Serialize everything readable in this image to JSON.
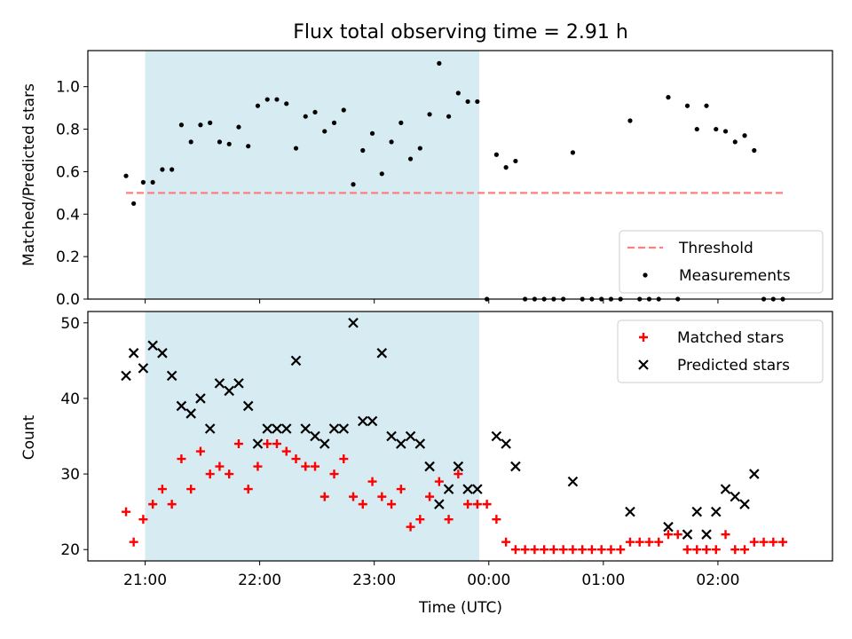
{
  "chart_data": [
    {
      "type": "scatter",
      "title": "Flux total observing time = 2.91 h",
      "xlabel": "",
      "ylabel": "Matched/Predicted stars",
      "ylim": [
        0,
        1.17
      ],
      "yticks": [
        0.0,
        0.2,
        0.4,
        0.6,
        0.8,
        1.0
      ],
      "ytick_labels": [
        "0.0",
        "0.2",
        "0.4",
        "0.6",
        "0.8",
        "1.0"
      ],
      "grid": false,
      "legend_position": "lower-right",
      "threshold": {
        "name": "Threshold",
        "value": 0.5,
        "x": [
          "20:50",
          "02:35"
        ],
        "color": "#ff7f7f"
      },
      "shaded_range": {
        "x": [
          "21:00",
          "23:55"
        ],
        "color": "#add8e6"
      },
      "series": [
        {
          "name": "Measurements",
          "color": "#000000",
          "points": [
            [
              "20:50",
              0.58
            ],
            [
              "20:54",
              0.45
            ],
            [
              "20:59",
              0.55
            ],
            [
              "21:04",
              0.55
            ],
            [
              "21:09",
              0.61
            ],
            [
              "21:14",
              0.61
            ],
            [
              "21:19",
              0.82
            ],
            [
              "21:24",
              0.74
            ],
            [
              "21:29",
              0.82
            ],
            [
              "21:34",
              0.83
            ],
            [
              "21:39",
              0.74
            ],
            [
              "21:44",
              0.73
            ],
            [
              "21:49",
              0.81
            ],
            [
              "21:54",
              0.72
            ],
            [
              "21:59",
              0.91
            ],
            [
              "22:04",
              0.94
            ],
            [
              "22:09",
              0.94
            ],
            [
              "22:14",
              0.92
            ],
            [
              "22:19",
              0.71
            ],
            [
              "22:24",
              0.86
            ],
            [
              "22:29",
              0.88
            ],
            [
              "22:34",
              0.79
            ],
            [
              "22:39",
              0.83
            ],
            [
              "22:44",
              0.89
            ],
            [
              "22:49",
              0.54
            ],
            [
              "22:54",
              0.7
            ],
            [
              "22:59",
              0.78
            ],
            [
              "23:04",
              0.59
            ],
            [
              "23:09",
              0.74
            ],
            [
              "23:14",
              0.83
            ],
            [
              "23:19",
              0.66
            ],
            [
              "23:24",
              0.71
            ],
            [
              "23:29",
              0.87
            ],
            [
              "23:34",
              1.11
            ],
            [
              "23:39",
              0.86
            ],
            [
              "23:44",
              0.97
            ],
            [
              "23:49",
              0.93
            ],
            [
              "23:54",
              0.93
            ],
            [
              "23:59",
              0.0
            ],
            [
              "00:04",
              0.68
            ],
            [
              "00:09",
              0.62
            ],
            [
              "00:14",
              0.65
            ],
            [
              "00:19",
              0.0
            ],
            [
              "00:24",
              0.0
            ],
            [
              "00:29",
              0.0
            ],
            [
              "00:34",
              0.0
            ],
            [
              "00:39",
              0.0
            ],
            [
              "00:44",
              0.69
            ],
            [
              "00:49",
              0.0
            ],
            [
              "00:54",
              0.0
            ],
            [
              "00:59",
              0.0
            ],
            [
              "01:04",
              0.0
            ],
            [
              "01:09",
              0.0
            ],
            [
              "01:14",
              0.84
            ],
            [
              "01:19",
              0.0
            ],
            [
              "01:24",
              0.0
            ],
            [
              "01:29",
              0.0
            ],
            [
              "01:34",
              0.95
            ],
            [
              "01:39",
              0.0
            ],
            [
              "01:44",
              0.91
            ],
            [
              "01:49",
              0.8
            ],
            [
              "01:54",
              0.91
            ],
            [
              "01:59",
              0.8
            ],
            [
              "02:04",
              0.79
            ],
            [
              "02:09",
              0.74
            ],
            [
              "02:14",
              0.77
            ],
            [
              "02:19",
              0.7
            ],
            [
              "02:24",
              0.0
            ],
            [
              "02:29",
              0.0
            ],
            [
              "02:34",
              0.0
            ]
          ]
        }
      ]
    },
    {
      "type": "scatter",
      "title": "",
      "xlabel": "Time (UTC)",
      "ylabel": "Count",
      "ylim": [
        18.5,
        51.5
      ],
      "yticks": [
        20,
        30,
        40,
        50
      ],
      "ytick_labels": [
        "20",
        "30",
        "40",
        "50"
      ],
      "xlim": [
        "20:30",
        "03:00"
      ],
      "xticks": [
        "21:00",
        "22:00",
        "23:00",
        "00:00",
        "01:00",
        "02:00"
      ],
      "xtick_labels": [
        "21:00",
        "22:00",
        "23:00",
        "00:00",
        "01:00",
        "02:00"
      ],
      "grid": false,
      "legend_position": "upper-right",
      "shaded_range": {
        "x": [
          "21:00",
          "23:55"
        ],
        "color": "#add8e6"
      },
      "series": [
        {
          "name": "Matched stars",
          "marker": "+",
          "color": "#ff0000",
          "points": [
            [
              "20:50",
              25
            ],
            [
              "20:54",
              21
            ],
            [
              "20:59",
              24
            ],
            [
              "21:04",
              26
            ],
            [
              "21:09",
              28
            ],
            [
              "21:14",
              26
            ],
            [
              "21:19",
              32
            ],
            [
              "21:24",
              28
            ],
            [
              "21:29",
              33
            ],
            [
              "21:34",
              30
            ],
            [
              "21:39",
              31
            ],
            [
              "21:44",
              30
            ],
            [
              "21:49",
              34
            ],
            [
              "21:54",
              28
            ],
            [
              "21:59",
              31
            ],
            [
              "22:04",
              34
            ],
            [
              "22:09",
              34
            ],
            [
              "22:14",
              33
            ],
            [
              "22:19",
              32
            ],
            [
              "22:24",
              31
            ],
            [
              "22:29",
              31
            ],
            [
              "22:34",
              27
            ],
            [
              "22:39",
              30
            ],
            [
              "22:44",
              32
            ],
            [
              "22:49",
              27
            ],
            [
              "22:54",
              26
            ],
            [
              "22:59",
              29
            ],
            [
              "23:04",
              27
            ],
            [
              "23:09",
              26
            ],
            [
              "23:14",
              28
            ],
            [
              "23:19",
              23
            ],
            [
              "23:24",
              24
            ],
            [
              "23:29",
              27
            ],
            [
              "23:34",
              29
            ],
            [
              "23:39",
              24
            ],
            [
              "23:44",
              30
            ],
            [
              "23:49",
              26
            ],
            [
              "23:54",
              26
            ],
            [
              "23:59",
              26
            ],
            [
              "00:04",
              24
            ],
            [
              "00:09",
              21
            ],
            [
              "00:14",
              20
            ],
            [
              "00:19",
              20
            ],
            [
              "00:24",
              20
            ],
            [
              "00:29",
              20
            ],
            [
              "00:34",
              20
            ],
            [
              "00:39",
              20
            ],
            [
              "00:44",
              20
            ],
            [
              "00:49",
              20
            ],
            [
              "00:54",
              20
            ],
            [
              "00:59",
              20
            ],
            [
              "01:04",
              20
            ],
            [
              "01:09",
              20
            ],
            [
              "01:14",
              21
            ],
            [
              "01:19",
              21
            ],
            [
              "01:24",
              21
            ],
            [
              "01:29",
              21
            ],
            [
              "01:34",
              22
            ],
            [
              "01:39",
              22
            ],
            [
              "01:44",
              20
            ],
            [
              "01:49",
              20
            ],
            [
              "01:54",
              20
            ],
            [
              "01:59",
              20
            ],
            [
              "02:04",
              22
            ],
            [
              "02:09",
              20
            ],
            [
              "02:14",
              20
            ],
            [
              "02:19",
              21
            ],
            [
              "02:24",
              21
            ],
            [
              "02:29",
              21
            ],
            [
              "02:34",
              21
            ]
          ]
        },
        {
          "name": "Predicted stars",
          "marker": "x",
          "color": "#000000",
          "points": [
            [
              "20:50",
              43
            ],
            [
              "20:54",
              46
            ],
            [
              "20:59",
              44
            ],
            [
              "21:04",
              47
            ],
            [
              "21:09",
              46
            ],
            [
              "21:14",
              43
            ],
            [
              "21:19",
              39
            ],
            [
              "21:24",
              38
            ],
            [
              "21:29",
              40
            ],
            [
              "21:34",
              36
            ],
            [
              "21:39",
              42
            ],
            [
              "21:44",
              41
            ],
            [
              "21:49",
              42
            ],
            [
              "21:54",
              39
            ],
            [
              "21:59",
              34
            ],
            [
              "22:04",
              36
            ],
            [
              "22:09",
              36
            ],
            [
              "22:14",
              36
            ],
            [
              "22:19",
              45
            ],
            [
              "22:24",
              36
            ],
            [
              "22:29",
              35
            ],
            [
              "22:34",
              34
            ],
            [
              "22:39",
              36
            ],
            [
              "22:44",
              36
            ],
            [
              "22:49",
              50
            ],
            [
              "22:54",
              37
            ],
            [
              "22:59",
              37
            ],
            [
              "23:04",
              46
            ],
            [
              "23:09",
              35
            ],
            [
              "23:14",
              34
            ],
            [
              "23:19",
              35
            ],
            [
              "23:24",
              34
            ],
            [
              "23:29",
              31
            ],
            [
              "23:34",
              26
            ],
            [
              "23:39",
              28
            ],
            [
              "23:44",
              31
            ],
            [
              "23:49",
              28
            ],
            [
              "23:54",
              28
            ],
            [
              "00:04",
              35
            ],
            [
              "00:09",
              34
            ],
            [
              "00:14",
              31
            ],
            [
              "00:44",
              29
            ],
            [
              "01:14",
              25
            ],
            [
              "01:34",
              23
            ],
            [
              "01:44",
              22
            ],
            [
              "01:49",
              25
            ],
            [
              "01:54",
              22
            ],
            [
              "01:59",
              25
            ],
            [
              "02:04",
              28
            ],
            [
              "02:09",
              27
            ],
            [
              "02:14",
              26
            ],
            [
              "02:19",
              30
            ]
          ]
        }
      ]
    }
  ]
}
